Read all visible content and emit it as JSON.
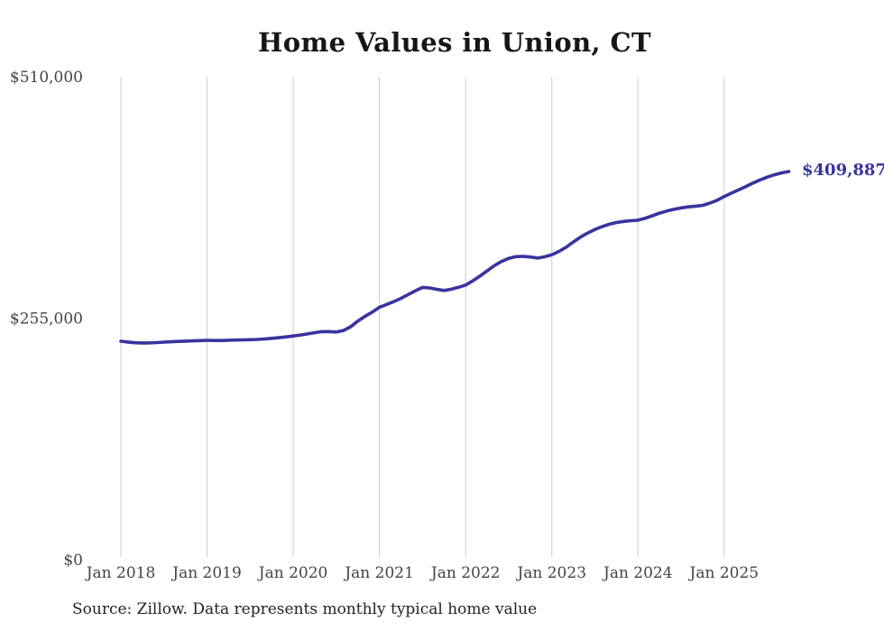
{
  "chart": {
    "title": "Home Values in Union, CT",
    "source": "Source: Zillow. Data represents monthly typical home value",
    "colors": {
      "line": "#39339f",
      "end_label": "#39339f",
      "grid": "#cdcdcd",
      "tick_text": "#444444",
      "title_text": "#161616",
      "background": "#ffffff"
    }
  },
  "chart_data": {
    "type": "line",
    "title": "Home Values in Union, CT",
    "series_name": "Typical home value (monthly)",
    "x_start": "Jan 2018",
    "x_end": "Oct 2025",
    "x_frequency": "monthly",
    "x_tick_labels": [
      "Jan 2018",
      "Jan 2019",
      "Jan 2020",
      "Jan 2021",
      "Jan 2022",
      "Jan 2023",
      "Jan 2024",
      "Jan 2025"
    ],
    "y_ticks": [
      {
        "label": "$510,000",
        "value": 510000
      },
      {
        "label": "$255,000",
        "value": 255000
      },
      {
        "label": "$0",
        "value": 0
      }
    ],
    "ylim": [
      0,
      510000
    ],
    "grid": "vertical-only",
    "legend": "none",
    "final_value": 409887,
    "final_value_label": "$409,887",
    "values": [
      230700,
      229800,
      229100,
      228900,
      229000,
      229300,
      229700,
      230100,
      230500,
      230800,
      231100,
      231400,
      231600,
      231500,
      231500,
      231700,
      231900,
      232100,
      232300,
      232600,
      233100,
      233700,
      234400,
      235300,
      236200,
      237300,
      238400,
      239700,
      240800,
      240900,
      240400,
      242000,
      246000,
      252000,
      257000,
      261500,
      266500,
      269500,
      272500,
      276000,
      280000,
      284000,
      287500,
      286900,
      285500,
      284300,
      285600,
      287600,
      290000,
      294500,
      299500,
      305000,
      310500,
      315000,
      318200,
      320000,
      320300,
      319600,
      318500,
      319800,
      322000,
      325500,
      330000,
      335500,
      340700,
      345000,
      348700,
      351800,
      354200,
      356000,
      357200,
      358000,
      358500,
      360500,
      363200,
      366000,
      368200,
      370000,
      371500,
      372500,
      373300,
      374200,
      376500,
      379500,
      383500,
      387000,
      390500,
      394000,
      397700,
      401000,
      404000,
      406500,
      408500,
      409887
    ]
  }
}
